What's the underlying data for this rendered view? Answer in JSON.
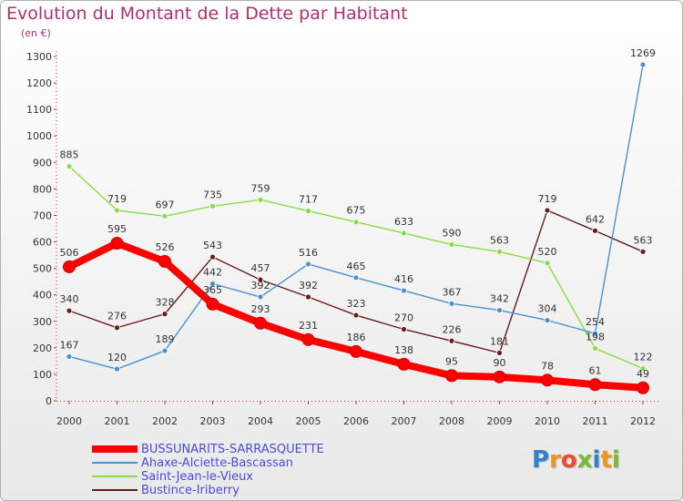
{
  "title": "Evolution du Montant de la Dette par Habitant",
  "subtitle": "(en €)",
  "logo": {
    "letters": [
      "P",
      "r",
      "o",
      "x",
      "i",
      "t",
      "i"
    ],
    "colors": [
      "#2f84c9",
      "#f39224",
      "#e94c2e",
      "#7cb935",
      "#2f84c9",
      "#f39224",
      "#7cb935"
    ]
  },
  "chart_data": {
    "type": "line",
    "x": [
      "2000",
      "2001",
      "2002",
      "2003",
      "2004",
      "2005",
      "2006",
      "2007",
      "2008",
      "2009",
      "2010",
      "2011",
      "2012"
    ],
    "ylim": [
      0,
      1300
    ],
    "yticks": [
      0,
      100,
      200,
      300,
      400,
      500,
      600,
      700,
      800,
      900,
      1000,
      1100,
      1200,
      1300
    ],
    "grid": false,
    "legend_position": "bottom-left",
    "series": [
      {
        "name": "BUSSUNARITS-SARRASQUETTE",
        "color": "#ff0000",
        "values": [
          506,
          595,
          526,
          365,
          293,
          231,
          186,
          138,
          95,
          90,
          78,
          61,
          49
        ]
      },
      {
        "name": "Ahaxe-Alciette-Bascassan",
        "color": "#4a90d0",
        "values": [
          167,
          120,
          189,
          442,
          392,
          516,
          465,
          416,
          367,
          342,
          304,
          254,
          1269
        ]
      },
      {
        "name": "Saint-Jean-le-Vieux",
        "color": "#88dd44",
        "values": [
          885,
          719,
          697,
          735,
          759,
          717,
          675,
          633,
          590,
          563,
          520,
          198,
          122
        ]
      },
      {
        "name": "Bustince-Iriberry",
        "color": "#6b1a1a",
        "values": [
          340,
          276,
          328,
          543,
          457,
          392,
          323,
          270,
          226,
          181,
          719,
          642,
          563
        ]
      }
    ]
  }
}
